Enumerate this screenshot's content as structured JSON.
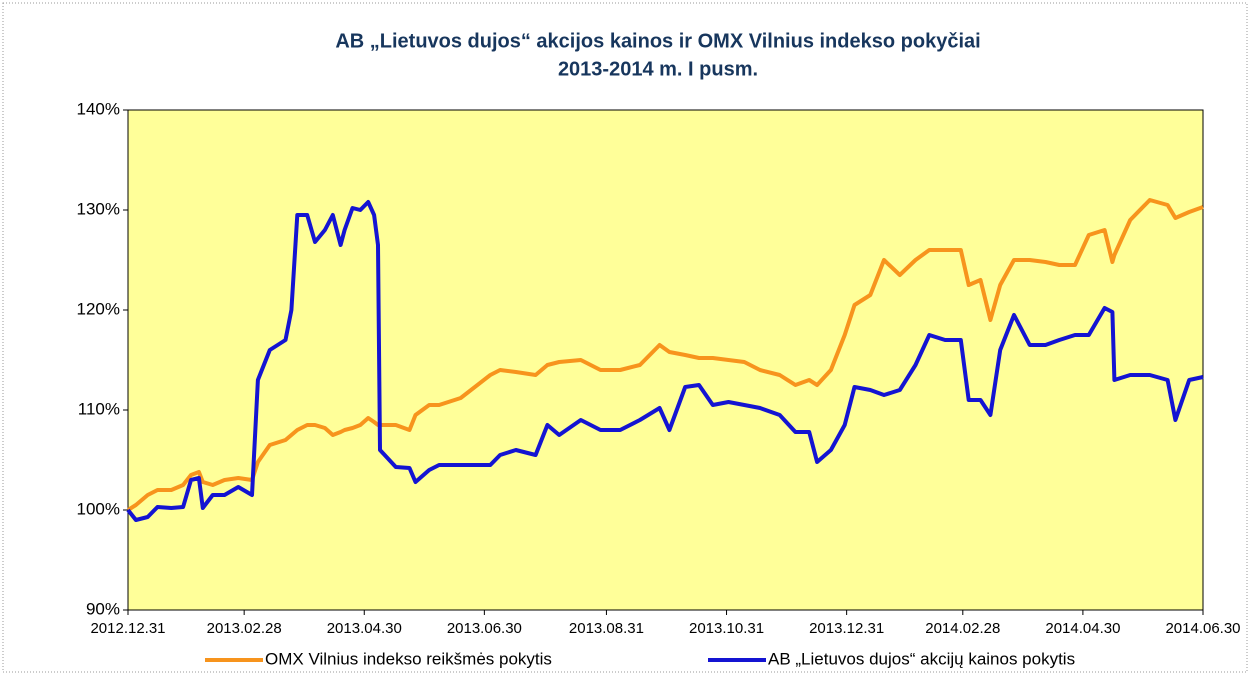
{
  "chart_data": {
    "type": "line",
    "title": "AB „Lietuvos dujos“ akcijos kainos ir OMX Vilnius indekso pokyčiai",
    "subtitle": "2013-2014 m. I pusm.",
    "x": [
      "2012.12.31",
      "2013.01.04",
      "2013.01.10",
      "2013.01.15",
      "2013.01.22",
      "2013.01.28",
      "2013.02.01",
      "2013.02.05",
      "2013.02.07",
      "2013.02.12",
      "2013.02.18",
      "2013.02.25",
      "2013.03.04",
      "2013.03.07",
      "2013.03.13",
      "2013.03.21",
      "2013.03.24",
      "2013.03.27",
      "2013.04.01",
      "2013.04.05",
      "2013.04.10",
      "2013.04.14",
      "2013.04.18",
      "2013.04.20",
      "2013.04.24",
      "2013.04.28",
      "2013.05.02",
      "2013.05.05",
      "2013.05.07",
      "2013.05.08",
      "2013.05.16",
      "2013.05.23",
      "2013.05.26",
      "2013.06.02",
      "2013.06.07",
      "2013.06.18",
      "2013.07.03",
      "2013.07.08",
      "2013.07.16",
      "2013.07.26",
      "2013.08.01",
      "2013.08.07",
      "2013.08.18",
      "2013.08.28",
      "2013.09.07",
      "2013.09.17",
      "2013.09.27",
      "2013.10.02",
      "2013.10.10",
      "2013.10.17",
      "2013.10.24",
      "2013.11.01",
      "2013.11.09",
      "2013.11.17",
      "2013.11.27",
      "2013.12.05",
      "2013.12.12",
      "2013.12.16",
      "2013.12.23",
      "2013.12.30",
      "2014.01.04",
      "2014.01.12",
      "2014.01.19",
      "2014.01.27",
      "2014.02.04",
      "2014.02.11",
      "2014.02.19",
      "2014.02.27",
      "2014.03.03",
      "2014.03.09",
      "2014.03.14",
      "2014.03.19",
      "2014.03.26",
      "2014.04.03",
      "2014.04.11",
      "2014.04.18",
      "2014.04.26",
      "2014.05.03",
      "2014.05.11",
      "2014.05.15",
      "2014.05.16",
      "2014.05.24",
      "2014.06.03",
      "2014.06.12",
      "2014.06.16",
      "2014.06.23",
      "2014.06.30"
    ],
    "series": [
      {
        "name": "OMX Vilnius indekso reikšmės pokytis",
        "color": "#f7941d",
        "values": [
          100,
          100.5,
          101.5,
          102,
          102,
          102.5,
          103.5,
          103.8,
          102.8,
          102.5,
          103,
          103.2,
          103,
          104.8,
          106.5,
          107,
          107.5,
          108,
          108.5,
          108.5,
          108.2,
          107.5,
          107.8,
          108,
          108.2,
          108.5,
          109.2,
          108.8,
          108.5,
          108.5,
          108.5,
          108,
          109.5,
          110.5,
          110.5,
          111.2,
          113.5,
          114,
          113.8,
          113.5,
          114.5,
          114.8,
          115,
          114,
          114,
          114.5,
          116.5,
          115.8,
          115.5,
          115.2,
          115.2,
          115,
          114.8,
          114,
          113.5,
          112.5,
          113,
          112.5,
          114,
          117.5,
          120.5,
          121.5,
          125,
          123.5,
          125,
          126,
          126,
          126,
          122.5,
          123,
          119,
          122.5,
          125,
          125,
          124.8,
          124.5,
          124.5,
          127.5,
          128,
          124.8,
          125.5,
          129,
          131,
          130.5,
          129.2,
          129.8,
          130.3
        ]
      },
      {
        "name": "AB „Lietuvos dujos“ akcijų kainos pokytis",
        "color": "#1414d2",
        "values": [
          100,
          99,
          99.3,
          100.3,
          100.2,
          100.3,
          103,
          103.2,
          100.2,
          101.5,
          101.5,
          102.3,
          101.5,
          113,
          116,
          117,
          120,
          129.5,
          129.5,
          126.8,
          128,
          129.5,
          126.5,
          128,
          130.2,
          130,
          130.8,
          129.5,
          126.5,
          106,
          104.3,
          104.2,
          102.8,
          104,
          104.5,
          104.5,
          104.5,
          105.5,
          106,
          105.5,
          108.5,
          107.5,
          109,
          108,
          108,
          109,
          110.2,
          108,
          112.3,
          112.5,
          110.5,
          110.8,
          110.5,
          110.2,
          109.5,
          107.8,
          107.8,
          104.8,
          106,
          108.5,
          112.3,
          112,
          111.5,
          112,
          114.5,
          117.5,
          117,
          117,
          111,
          111,
          109.5,
          116,
          119.5,
          116.5,
          116.5,
          117,
          117.5,
          117.5,
          120.2,
          119.8,
          113,
          113.5,
          113.5,
          113,
          109,
          113,
          113.3
        ]
      }
    ],
    "xlim": [
      "2012.12.31",
      "2014.06.30"
    ],
    "xticks": [
      "2012.12.31",
      "2013.02.28",
      "2013.04.30",
      "2013.06.30",
      "2013.08.31",
      "2013.10.31",
      "2013.12.31",
      "2014.02.28",
      "2014.04.30",
      "2014.06.30"
    ],
    "ylim": [
      90,
      140
    ],
    "yticks": [
      {
        "value": 90,
        "label": "90%"
      },
      {
        "value": 100,
        "label": "100%"
      },
      {
        "value": 110,
        "label": "110%"
      },
      {
        "value": 120,
        "label": "120%"
      },
      {
        "value": 130,
        "label": "130%"
      },
      {
        "value": 140,
        "label": "140%"
      }
    ],
    "legend": "bottom"
  }
}
